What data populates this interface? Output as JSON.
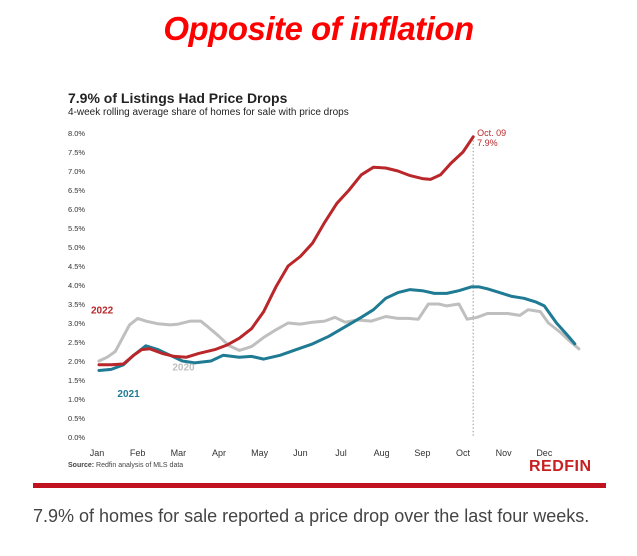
{
  "headline": "Opposite of inflation",
  "caption": "7.9% of homes for sale reported a price drop over the last four weeks.",
  "source_label": "Source:",
  "source_text": "Redfin analysis of MLS data",
  "logo_text": "REDFIN",
  "colors": {
    "headline": "#ff0000",
    "series_2022": "#b9272a",
    "series_2021": "#1f7a93",
    "series_2020": "#bfbfbf",
    "rule": "#c1121f"
  },
  "chart_data": {
    "type": "line",
    "title": "7.9% of Listings Had Price Drops",
    "subtitle": "4-week rolling average share of homes for sale with price drops",
    "xlabel": "",
    "ylabel": "",
    "x_ticks": [
      "Jan",
      "Feb",
      "Mar",
      "Apr",
      "May",
      "Jun",
      "Jul",
      "Aug",
      "Sep",
      "Oct",
      "Nov",
      "Dec"
    ],
    "y_ticks": [
      "0.0%",
      "0.5%",
      "1.0%",
      "1.5%",
      "2.0%",
      "2.5%",
      "3.0%",
      "3.5%",
      "4.0%",
      "4.5%",
      "5.0%",
      "5.5%",
      "6.0%",
      "6.5%",
      "7.0%",
      "7.5%",
      "8.0%"
    ],
    "ylim": [
      0,
      8.0
    ],
    "xlim": [
      0,
      12
    ],
    "grid": false,
    "annotation": {
      "label": "Oct. 09",
      "value_label": "7.9%",
      "x": 9.25,
      "y": 7.9
    },
    "series": [
      {
        "name": "2020",
        "color": "#bfbfbf",
        "label_at": [
          2.0,
          1.75
        ],
        "x": [
          0.05,
          0.25,
          0.45,
          0.6,
          0.8,
          1.0,
          1.2,
          1.5,
          1.8,
          2.0,
          2.3,
          2.55,
          2.75,
          3.0,
          3.25,
          3.5,
          3.8,
          4.1,
          4.4,
          4.7,
          5.0,
          5.3,
          5.6,
          5.85,
          6.1,
          6.4,
          6.75,
          7.1,
          7.4,
          7.65,
          7.9,
          8.15,
          8.4,
          8.6,
          8.9,
          9.1,
          9.35,
          9.6,
          9.85,
          10.1,
          10.4,
          10.6,
          10.9,
          11.1,
          11.4,
          11.6,
          11.85
        ],
        "y": [
          2.0,
          2.1,
          2.25,
          2.55,
          2.95,
          3.12,
          3.05,
          2.98,
          2.95,
          2.97,
          3.05,
          3.05,
          2.88,
          2.65,
          2.4,
          2.28,
          2.38,
          2.62,
          2.82,
          3.0,
          2.97,
          3.02,
          3.05,
          3.15,
          3.02,
          3.08,
          3.05,
          3.17,
          3.12,
          3.12,
          3.1,
          3.5,
          3.5,
          3.45,
          3.5,
          3.1,
          3.15,
          3.25,
          3.25,
          3.25,
          3.2,
          3.35,
          3.3,
          3.0,
          2.75,
          2.55,
          2.32
        ]
      },
      {
        "name": "2021",
        "color": "#1f7a93",
        "label_at": [
          0.65,
          1.05
        ],
        "x": [
          0.05,
          0.35,
          0.65,
          0.9,
          1.2,
          1.5,
          1.8,
          2.1,
          2.4,
          2.8,
          3.1,
          3.5,
          3.8,
          4.1,
          4.5,
          4.9,
          5.3,
          5.7,
          6.1,
          6.5,
          6.8,
          7.1,
          7.4,
          7.7,
          8.0,
          8.3,
          8.6,
          8.9,
          9.2,
          9.4,
          9.6,
          9.9,
          10.2,
          10.5,
          10.8,
          11.0,
          11.3,
          11.55,
          11.75
        ],
        "y": [
          1.75,
          1.78,
          1.9,
          2.15,
          2.4,
          2.3,
          2.15,
          2.0,
          1.95,
          2.0,
          2.15,
          2.1,
          2.12,
          2.05,
          2.15,
          2.3,
          2.45,
          2.65,
          2.9,
          3.15,
          3.35,
          3.65,
          3.8,
          3.88,
          3.85,
          3.78,
          3.78,
          3.85,
          3.95,
          3.95,
          3.9,
          3.8,
          3.7,
          3.65,
          3.55,
          3.45,
          3.0,
          2.7,
          2.45
        ]
      },
      {
        "name": "2022",
        "color": "#b9272a",
        "label_at": [
          0.0,
          3.25
        ],
        "x": [
          0.05,
          0.35,
          0.65,
          0.9,
          1.1,
          1.3,
          1.6,
          1.9,
          2.2,
          2.5,
          2.9,
          3.2,
          3.5,
          3.8,
          4.1,
          4.4,
          4.7,
          5.0,
          5.3,
          5.6,
          5.9,
          6.2,
          6.5,
          6.8,
          7.1,
          7.4,
          7.7,
          8.0,
          8.2,
          8.45,
          8.7,
          9.0,
          9.25
        ],
        "y": [
          1.9,
          1.9,
          1.92,
          2.15,
          2.3,
          2.32,
          2.2,
          2.12,
          2.1,
          2.2,
          2.3,
          2.42,
          2.6,
          2.85,
          3.3,
          3.95,
          4.5,
          4.75,
          5.1,
          5.65,
          6.15,
          6.5,
          6.9,
          7.1,
          7.08,
          7.0,
          6.88,
          6.8,
          6.78,
          6.9,
          7.2,
          7.5,
          7.9
        ]
      }
    ]
  }
}
